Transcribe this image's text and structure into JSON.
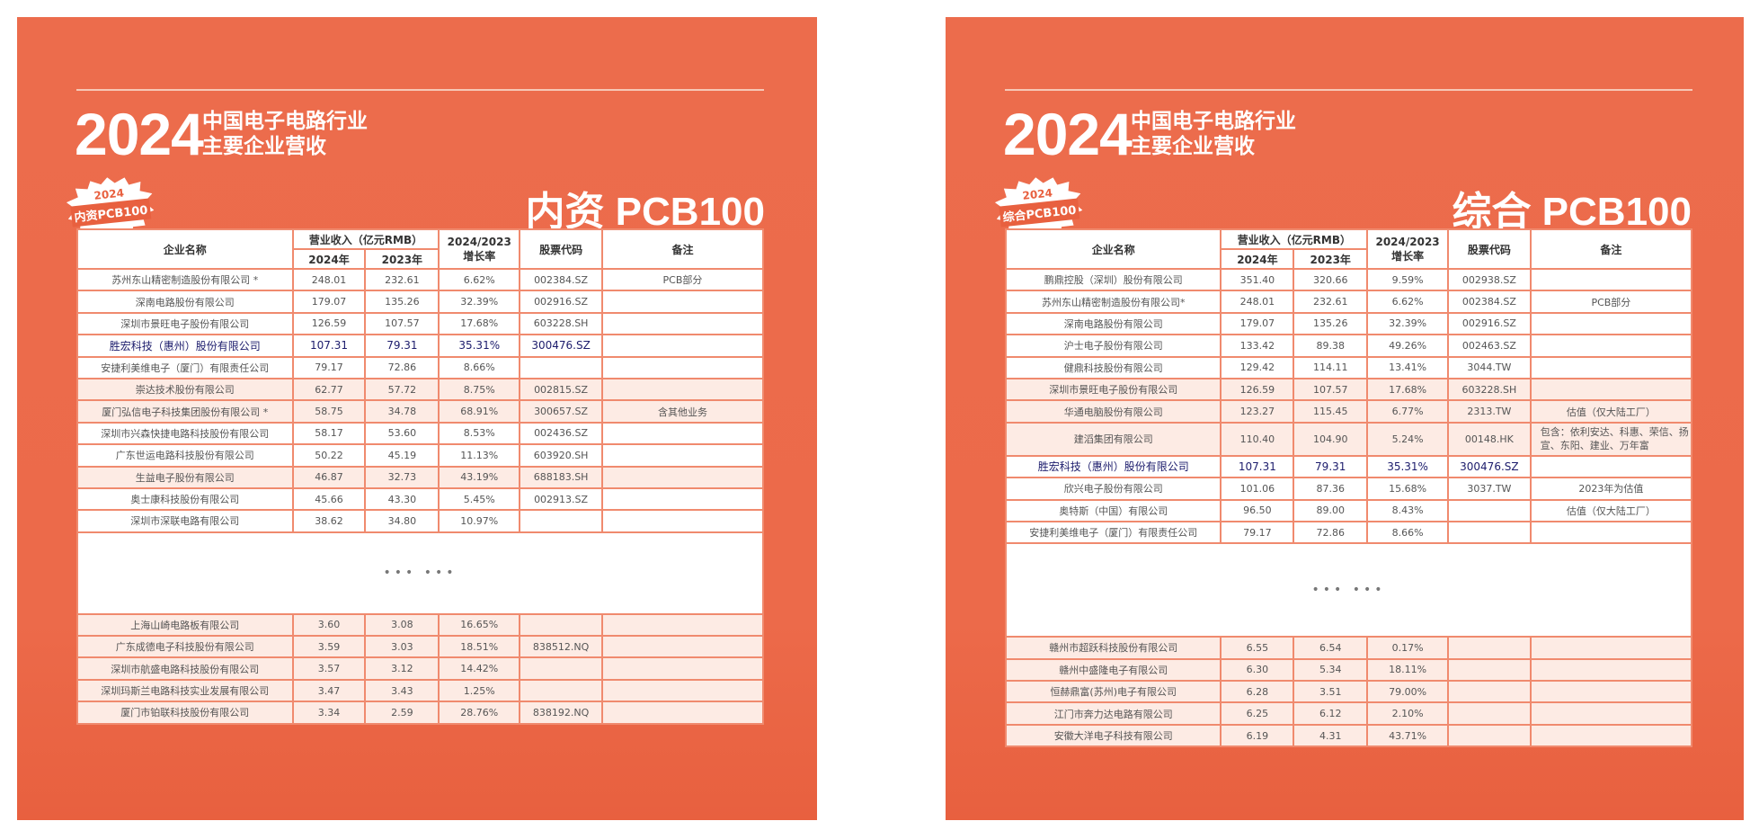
{
  "colors": {
    "panel": "#ec6b4b",
    "highlight_text": "#1c1c6c",
    "row_tint": "#fdebe4"
  },
  "header": {
    "year": "2024",
    "line1": "中国电子电路行业",
    "line2": "主要企业营收"
  },
  "columns": {
    "name": "企业名称",
    "revenue": "营业收入（亿元RMB）",
    "y2024": "2024年",
    "y2023": "2023年",
    "growth_top": "2024/2023",
    "growth_bottom": "增长率",
    "code": "股票代码",
    "note": "备注"
  },
  "ellipsis": "••• •••",
  "panels": [
    {
      "title": "内资 PCB100",
      "badge_year": "2024",
      "badge_title": "内资PCB100",
      "highlight": "胜宏科技（惠州）股份有限公司",
      "top_rows": [
        [
          "苏州东山精密制造股份有限公司 *",
          "248.01",
          "232.61",
          "6.62%",
          "002384.SZ",
          "PCB部分"
        ],
        [
          "深南电路股份有限公司",
          "179.07",
          "135.26",
          "32.39%",
          "002916.SZ",
          ""
        ],
        [
          "深圳市景旺电子股份有限公司",
          "126.59",
          "107.57",
          "17.68%",
          "603228.SH",
          ""
        ],
        [
          "胜宏科技（惠州）股份有限公司",
          "107.31",
          "79.31",
          "35.31%",
          "300476.SZ",
          ""
        ],
        [
          "安捷利美维电子（厦门）有限责任公司",
          "79.17",
          "72.86",
          "8.66%",
          "",
          ""
        ],
        [
          "崇达技术股份有限公司",
          "62.77",
          "57.72",
          "8.75%",
          "002815.SZ",
          ""
        ],
        [
          "厦门弘信电子科技集团股份有限公司 *",
          "58.75",
          "34.78",
          "68.91%",
          "300657.SZ",
          "含其他业务"
        ],
        [
          "深圳市兴森快捷电路科技股份有限公司",
          "58.17",
          "53.60",
          "8.53%",
          "002436.SZ",
          ""
        ],
        [
          "广东世运电路科技股份有限公司",
          "50.22",
          "45.19",
          "11.13%",
          "603920.SH",
          ""
        ],
        [
          "生益电子股份有限公司",
          "46.87",
          "32.73",
          "43.19%",
          "688183.SH",
          ""
        ],
        [
          "奥士康科技股份有限公司",
          "45.66",
          "43.30",
          "5.45%",
          "002913.SZ",
          ""
        ],
        [
          "深圳市深联电路有限公司",
          "38.62",
          "34.80",
          "10.97%",
          "",
          ""
        ]
      ],
      "bottom_rows": [
        [
          "上海山崎电路板有限公司",
          "3.60",
          "3.08",
          "16.65%",
          "",
          ""
        ],
        [
          "广东成德电子科技股份有限公司",
          "3.59",
          "3.03",
          "18.51%",
          "838512.NQ",
          ""
        ],
        [
          "深圳市航盛电路科技股份有限公司",
          "3.57",
          "3.12",
          "14.42%",
          "",
          ""
        ],
        [
          "深圳玛斯兰电路科技实业发展有限公司",
          "3.47",
          "3.43",
          "1.25%",
          "",
          ""
        ],
        [
          "厦门市铂联科技股份有限公司",
          "3.34",
          "2.59",
          "28.76%",
          "838192.NQ",
          ""
        ]
      ]
    },
    {
      "title": "综合 PCB100",
      "badge_year": "2024",
      "badge_title": "综合PCB100",
      "highlight": "胜宏科技（惠州）股份有限公司",
      "top_rows": [
        [
          "鹏鼎控股（深圳）股份有限公司",
          "351.40",
          "320.66",
          "9.59%",
          "002938.SZ",
          ""
        ],
        [
          "苏州东山精密制造股份有限公司*",
          "248.01",
          "232.61",
          "6.62%",
          "002384.SZ",
          "PCB部分"
        ],
        [
          "深南电路股份有限公司",
          "179.07",
          "135.26",
          "32.39%",
          "002916.SZ",
          ""
        ],
        [
          "沪士电子股份有限公司",
          "133.42",
          "89.38",
          "49.26%",
          "002463.SZ",
          ""
        ],
        [
          "健鼎科技股份有限公司",
          "129.42",
          "114.11",
          "13.41%",
          "3044.TW",
          ""
        ],
        [
          "深圳市景旺电子股份有限公司",
          "126.59",
          "107.57",
          "17.68%",
          "603228.SH",
          ""
        ],
        [
          "华通电脑股份有限公司",
          "123.27",
          "115.45",
          "6.77%",
          "2313.TW",
          "估值（仅大陆工厂）"
        ],
        [
          "建滔集团有限公司",
          "110.40",
          "104.90",
          "5.24%",
          "00148.HK",
          "包含：依利安达、科惠、荣信、扬宣、东阳、建业、万年富"
        ],
        [
          "胜宏科技（惠州）股份有限公司",
          "107.31",
          "79.31",
          "35.31%",
          "300476.SZ",
          ""
        ],
        [
          "欣兴电子股份有限公司",
          "101.06",
          "87.36",
          "15.68%",
          "3037.TW",
          "2023年为估值"
        ],
        [
          "奥特斯（中国）有限公司",
          "96.50",
          "89.00",
          "8.43%",
          "",
          "估值（仅大陆工厂）"
        ],
        [
          "安捷利美维电子（厦门）有限责任公司",
          "79.17",
          "72.86",
          "8.66%",
          "",
          ""
        ]
      ],
      "bottom_rows": [
        [
          "赣州市超跃科技股份有限公司",
          "6.55",
          "6.54",
          "0.17%",
          "",
          ""
        ],
        [
          "赣州中盛隆电子有限公司",
          "6.30",
          "5.34",
          "18.11%",
          "",
          ""
        ],
        [
          "恒赫鼎富(苏州)电子有限公司",
          "6.28",
          "3.51",
          "79.00%",
          "",
          ""
        ],
        [
          "江门市奔力达电路有限公司",
          "6.25",
          "6.12",
          "2.10%",
          "",
          ""
        ],
        [
          "安徽大洋电子科技有限公司",
          "6.19",
          "4.31",
          "43.71%",
          "",
          ""
        ]
      ]
    }
  ]
}
